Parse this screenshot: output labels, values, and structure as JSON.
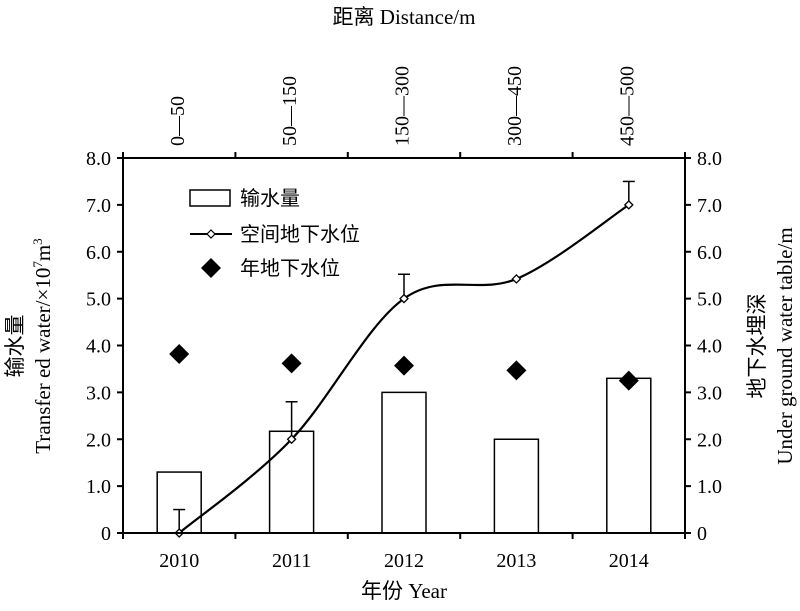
{
  "chart_data": {
    "type": "bar",
    "categories": [
      "2010",
      "2011",
      "2012",
      "2013",
      "2014"
    ],
    "top_categories": [
      "0—50",
      "50—150",
      "150—300",
      "300—450",
      "450—500"
    ],
    "series": [
      {
        "name": "输水量",
        "type": "bar",
        "axis": "left",
        "values": [
          1.3,
          2.17,
          3.0,
          2.0,
          3.3
        ]
      },
      {
        "name": "空间地下水位",
        "type": "line",
        "axis": "right",
        "values": [
          0.0,
          2.0,
          5.0,
          5.42,
          7.0
        ],
        "error_upper": [
          0.5,
          2.8,
          5.52,
          null,
          7.5
        ]
      },
      {
        "name": "年地下水位",
        "type": "scatter",
        "axis": "right",
        "values": [
          3.82,
          3.62,
          3.57,
          3.47,
          3.25
        ]
      }
    ],
    "xlabel": "年份 Year",
    "top_xlabel": "距离 Distance/m",
    "ylabel_left_cn": "输水量",
    "ylabel_left_en": "Transfer ed water/×10",
    "ylabel_left_exp1": "7",
    "ylabel_left_mid": "m",
    "ylabel_left_exp2": "3",
    "ylabel_right_cn": "地下水埋深",
    "ylabel_right_en": "Under ground water table/m",
    "ylim": [
      0,
      8
    ],
    "yticks": [
      "0",
      "1.0",
      "2.0",
      "3.0",
      "4.0",
      "5.0",
      "6.0",
      "7.0",
      "8.0"
    ],
    "legend_position": "top-left",
    "colors": {
      "axis": "#000000",
      "bar_fill": "#ffffff",
      "line": "#000000",
      "marker": "#000000"
    }
  }
}
